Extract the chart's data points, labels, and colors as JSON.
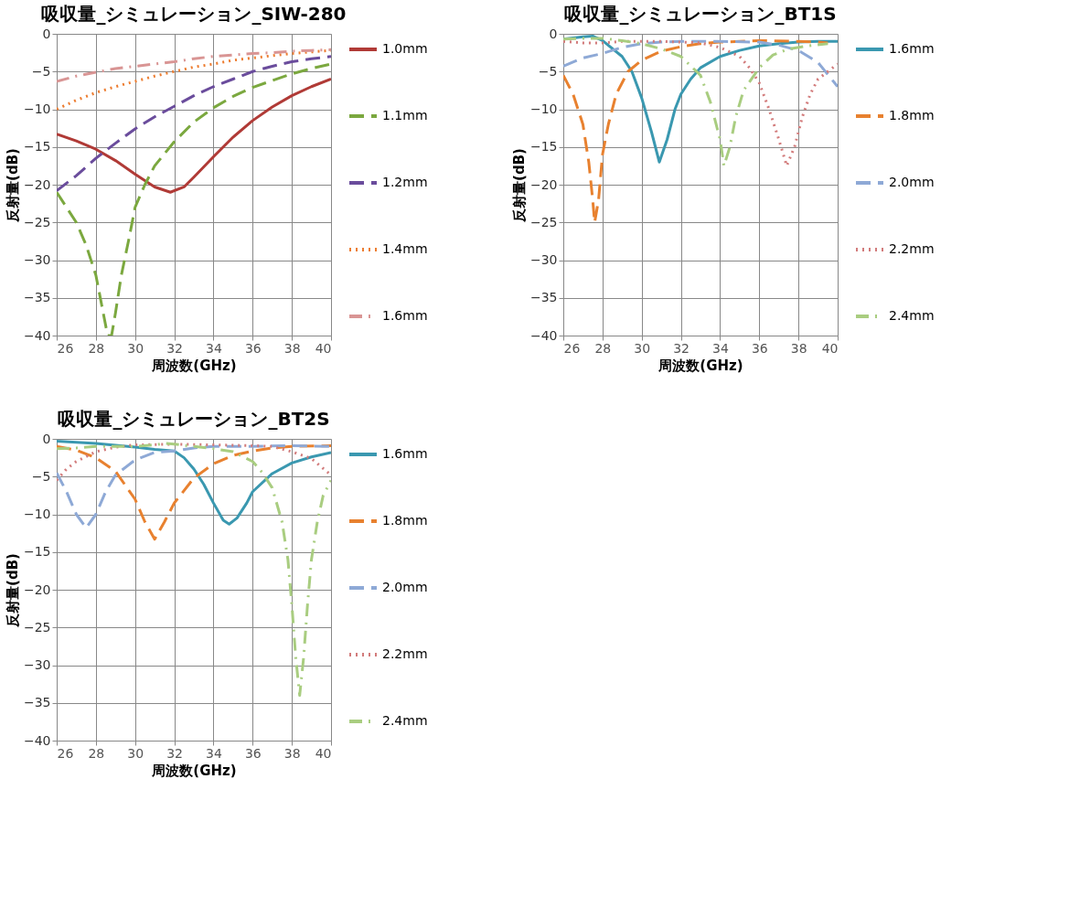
{
  "chart_data": [
    {
      "type": "line",
      "title": "吸収量_シミュレーション_SIW-280",
      "xlabel": "周波数(GHz)",
      "ylabel": "反射量(dB)",
      "xlim": [
        26,
        40
      ],
      "xticks": [
        26,
        28,
        30,
        32,
        34,
        36,
        38,
        40
      ],
      "ylim": [
        -40,
        0
      ],
      "yticks": [
        -40,
        -35,
        -30,
        -25,
        -20,
        -15,
        -10,
        -5,
        0
      ],
      "grid": true,
      "legend": "right",
      "series": [
        {
          "name": "1.0mm",
          "color": "#b03a36",
          "line_style": "solid",
          "x": [
            26,
            27,
            28,
            29,
            30,
            31,
            31.8,
            32.5,
            33,
            34,
            35,
            36,
            37,
            38,
            39,
            40
          ],
          "values": [
            -13.3,
            -14.2,
            -15.3,
            -16.8,
            -18.6,
            -20.3,
            -21,
            -20.3,
            -19,
            -16.3,
            -13.7,
            -11.5,
            -9.7,
            -8.2,
            -7,
            -6
          ]
        },
        {
          "name": "1.1mm",
          "color": "#7ba83f",
          "line_style": "dashed",
          "x": [
            26,
            27,
            27.5,
            28,
            28.3,
            28.6,
            28.8,
            29,
            29.3,
            29.7,
            30,
            30.5,
            31,
            32,
            33,
            34,
            35,
            36,
            37,
            38,
            39,
            40
          ],
          "values": [
            -21,
            -25,
            -28,
            -32,
            -36,
            -40,
            -40,
            -37,
            -32,
            -27,
            -23,
            -20,
            -17.5,
            -14.3,
            -11.7,
            -9.8,
            -8.3,
            -7.1,
            -6.2,
            -5.3,
            -4.6,
            -4
          ]
        },
        {
          "name": "1.2mm",
          "color": "#6a4c9c",
          "line_style": "dashed",
          "x": [
            26,
            27,
            28,
            29,
            30,
            31,
            32,
            33,
            34,
            35,
            36,
            37,
            38,
            39,
            40
          ],
          "values": [
            -20.8,
            -18.8,
            -16.5,
            -14.5,
            -12.6,
            -11,
            -9.6,
            -8.2,
            -7,
            -6,
            -5,
            -4.3,
            -3.7,
            -3.3,
            -3
          ]
        },
        {
          "name": "1.4mm",
          "color": "#ed7d31",
          "line_style": "dotted",
          "x": [
            26,
            27,
            28,
            29,
            30,
            31,
            32,
            33,
            34,
            35,
            36,
            37,
            38,
            39,
            40
          ],
          "values": [
            -10,
            -8.8,
            -7.8,
            -7,
            -6.3,
            -5.6,
            -5,
            -4.4,
            -4,
            -3.5,
            -3.2,
            -2.9,
            -2.6,
            -2.4,
            -2.2
          ]
        },
        {
          "name": "1.6mm",
          "color": "#d99594",
          "line_style": "dashdot",
          "x": [
            26,
            27,
            28,
            29,
            30,
            31,
            32,
            33,
            34,
            35,
            36,
            37,
            38,
            39,
            40
          ],
          "values": [
            -6.3,
            -5.6,
            -5.1,
            -4.6,
            -4.3,
            -4,
            -3.7,
            -3.3,
            -3,
            -2.8,
            -2.6,
            -2.5,
            -2.3,
            -2.2,
            -2.1
          ]
        }
      ]
    },
    {
      "type": "line",
      "title": "吸収量_シミュレーション_BT1S",
      "xlabel": "周波数(GHz)",
      "ylabel": "反射量(dB)",
      "xlim": [
        26,
        40
      ],
      "xticks": [
        26,
        28,
        30,
        32,
        34,
        36,
        38,
        40
      ],
      "ylim": [
        -40,
        0
      ],
      "yticks": [
        -40,
        -35,
        -30,
        -25,
        -20,
        -15,
        -10,
        -5,
        0
      ],
      "grid": true,
      "legend": "right",
      "series": [
        {
          "name": "1.6mm",
          "color": "#3a98b0",
          "line_style": "solid",
          "x": [
            26,
            27,
            27.5,
            28,
            29,
            29.5,
            30,
            30.5,
            30.9,
            31.3,
            31.7,
            32,
            32.5,
            33,
            34,
            35,
            36,
            37,
            38,
            39,
            40
          ],
          "values": [
            -0.7,
            -0.4,
            -0.3,
            -0.9,
            -3,
            -5,
            -8.5,
            -13,
            -17,
            -14,
            -10,
            -8,
            -6,
            -4.5,
            -3,
            -2.2,
            -1.6,
            -1.3,
            -1.1,
            -1,
            -1
          ]
        },
        {
          "name": "1.8mm",
          "color": "#e8812f",
          "line_style": "dashed",
          "x": [
            26,
            26.5,
            27,
            27.3,
            27.5,
            27.6,
            27.8,
            28,
            28.3,
            28.7,
            29.3,
            30,
            31,
            32,
            33,
            34,
            36,
            38,
            39,
            39.5
          ],
          "values": [
            -5.5,
            -8,
            -12,
            -17,
            -22,
            -25,
            -22,
            -16,
            -12,
            -8,
            -5,
            -3.5,
            -2.3,
            -1.7,
            -1.3,
            -1.1,
            -0.9,
            -1,
            -1.1,
            -1.2
          ]
        },
        {
          "name": "2.0mm",
          "color": "#8ea9d6",
          "line_style": "dashed",
          "x": [
            26,
            27,
            28,
            29,
            30,
            31,
            32,
            34,
            36,
            37,
            38,
            39,
            40
          ],
          "values": [
            -4.3,
            -3.2,
            -2.6,
            -1.8,
            -1.3,
            -1.1,
            -1,
            -1,
            -1.1,
            -1.5,
            -2.2,
            -3.8,
            -7
          ]
        },
        {
          "name": "2.2mm",
          "color": "#d27b7b",
          "line_style": "dotted",
          "x": [
            26,
            27,
            28,
            29,
            31,
            33,
            34,
            35,
            35.5,
            36,
            36.5,
            37,
            37.4,
            37.8,
            38.2,
            38.6,
            39,
            39.5,
            40
          ],
          "values": [
            -1,
            -1.2,
            -1.2,
            -1,
            -1,
            -1.2,
            -1.8,
            -3,
            -4.5,
            -6.5,
            -10,
            -14,
            -17.5,
            -15,
            -11,
            -8,
            -6,
            -5,
            -4
          ]
        },
        {
          "name": "2.4mm",
          "color": "#a9cd80",
          "line_style": "dashdot",
          "x": [
            26,
            27,
            28,
            29,
            30,
            31,
            32,
            33,
            33.5,
            34,
            34.2,
            34.5,
            34.8,
            35.2,
            36,
            36.7,
            37.5,
            38.5,
            39.5
          ],
          "values": [
            -0.7,
            -0.6,
            -0.6,
            -0.9,
            -1.3,
            -2,
            -3,
            -5.5,
            -9,
            -14,
            -17.5,
            -15,
            -11,
            -7.5,
            -4.5,
            -2.8,
            -2,
            -1.6,
            -1.3
          ]
        }
      ]
    },
    {
      "type": "line",
      "title": "吸収量_シミュレーション_BT2S",
      "xlabel": "周波数(GHz)",
      "ylabel": "反射量(dB)",
      "xlim": [
        26,
        40
      ],
      "xticks": [
        26,
        28,
        30,
        32,
        34,
        36,
        38,
        40
      ],
      "ylim": [
        -40,
        0
      ],
      "yticks": [
        -40,
        -35,
        -30,
        -25,
        -20,
        -15,
        -10,
        -5,
        0
      ],
      "grid": true,
      "legend": "right",
      "series": [
        {
          "name": "1.6mm",
          "color": "#3a98b0",
          "line_style": "solid",
          "x": [
            26,
            28,
            30,
            31,
            32,
            32.5,
            33,
            33.5,
            34,
            34.5,
            34.8,
            35.2,
            35.7,
            36,
            37,
            38,
            39,
            40
          ],
          "values": [
            -0.3,
            -0.6,
            -1.1,
            -1.4,
            -1.6,
            -2.5,
            -4,
            -6,
            -8.5,
            -10.8,
            -11.3,
            -10.5,
            -8.5,
            -7,
            -4.6,
            -3.2,
            -2.4,
            -1.8
          ]
        },
        {
          "name": "1.8mm",
          "color": "#e8812f",
          "line_style": "dashed",
          "x": [
            26,
            27,
            28,
            29,
            30,
            30.5,
            31,
            31.5,
            32,
            33,
            34,
            35,
            36,
            37,
            38,
            40
          ],
          "values": [
            -1,
            -1.5,
            -2.5,
            -4.3,
            -8,
            -11,
            -13.3,
            -11,
            -8.5,
            -5.2,
            -3.3,
            -2.2,
            -1.6,
            -1.2,
            -1,
            -0.9
          ]
        },
        {
          "name": "2.0mm",
          "color": "#8ea9d6",
          "line_style": "dashed",
          "x": [
            26,
            26.5,
            27,
            27.5,
            28,
            28.5,
            29,
            30,
            31,
            32,
            33,
            34,
            36,
            38,
            40
          ],
          "values": [
            -4.5,
            -7,
            -10,
            -11.8,
            -10,
            -7,
            -4.8,
            -2.8,
            -1.8,
            -1.6,
            -1.2,
            -1,
            -1,
            -0.9,
            -1
          ]
        },
        {
          "name": "2.2mm",
          "color": "#d27b7b",
          "line_style": "dotted",
          "x": [
            26,
            26.5,
            27,
            28,
            29,
            30,
            32,
            34,
            36,
            37,
            38,
            39,
            40
          ],
          "values": [
            -5.5,
            -4,
            -3,
            -1.7,
            -1.1,
            -0.8,
            -0.7,
            -0.8,
            -0.9,
            -1,
            -1.7,
            -2.6,
            -4.8
          ]
        },
        {
          "name": "2.4mm",
          "color": "#a9cd80",
          "line_style": "dashdot",
          "x": [
            26,
            27,
            28,
            29,
            30,
            31,
            31.5,
            32,
            33,
            34,
            35,
            36,
            36.5,
            37,
            37.5,
            37.8,
            38,
            38.2,
            38.4,
            38.6,
            38.8,
            39,
            39.3,
            39.6,
            40
          ],
          "values": [
            -1.3,
            -1.2,
            -1,
            -1,
            -1,
            -0.8,
            -0.6,
            -0.7,
            -1,
            -1.3,
            -1.7,
            -3,
            -4.5,
            -6.5,
            -11,
            -16,
            -22,
            -29,
            -34,
            -29,
            -22,
            -16,
            -11,
            -7.5,
            -5.5
          ]
        }
      ]
    }
  ]
}
